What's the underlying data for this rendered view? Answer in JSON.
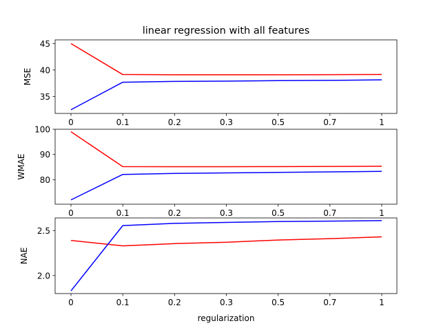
{
  "figure": {
    "title": "linear regression with all features",
    "xlabel": "regularization"
  },
  "chart_data": [
    {
      "type": "line",
      "title": "linear regression with all features",
      "xlabel": "",
      "ylabel": "MSE",
      "categories": [
        "0",
        "0.1",
        "0.2",
        "0.3",
        "0.5",
        "0.7",
        "1"
      ],
      "ylim": [
        31.8,
        45.7
      ],
      "yticks": [
        35,
        40,
        45
      ],
      "grid": false,
      "series": [
        {
          "color": "#ff0000",
          "values": [
            45.0,
            39.15,
            39.1,
            39.1,
            39.1,
            39.12,
            39.15
          ]
        },
        {
          "color": "#0000ff",
          "values": [
            32.5,
            37.7,
            37.85,
            37.9,
            38.0,
            38.05,
            38.15
          ]
        }
      ]
    },
    {
      "type": "line",
      "xlabel": "",
      "ylabel": "WMAE",
      "categories": [
        "0",
        "0.1",
        "0.2",
        "0.3",
        "0.5",
        "0.7",
        "1"
      ],
      "ylim": [
        70.3,
        100
      ],
      "yticks": [
        80,
        90,
        100
      ],
      "grid": false,
      "series": [
        {
          "color": "#ff0000",
          "values": [
            99.0,
            85.2,
            85.15,
            85.15,
            85.2,
            85.25,
            85.35
          ]
        },
        {
          "color": "#0000ff",
          "values": [
            72.0,
            82.1,
            82.5,
            82.7,
            82.9,
            83.1,
            83.3
          ]
        }
      ]
    },
    {
      "type": "line",
      "xlabel": "regularization",
      "ylabel": "NAE",
      "categories": [
        "0",
        "0.1",
        "0.2",
        "0.3",
        "0.5",
        "0.7",
        "1"
      ],
      "ylim": [
        1.8,
        2.64
      ],
      "yticks": [
        2.0,
        2.5
      ],
      "ytick_labels": [
        "2.0",
        "2.5"
      ],
      "grid": false,
      "series": [
        {
          "color": "#ff0000",
          "values": [
            2.39,
            2.33,
            2.355,
            2.37,
            2.395,
            2.41,
            2.43
          ]
        },
        {
          "color": "#0000ff",
          "values": [
            1.83,
            2.555,
            2.58,
            2.59,
            2.6,
            2.605,
            2.61
          ]
        }
      ]
    }
  ]
}
